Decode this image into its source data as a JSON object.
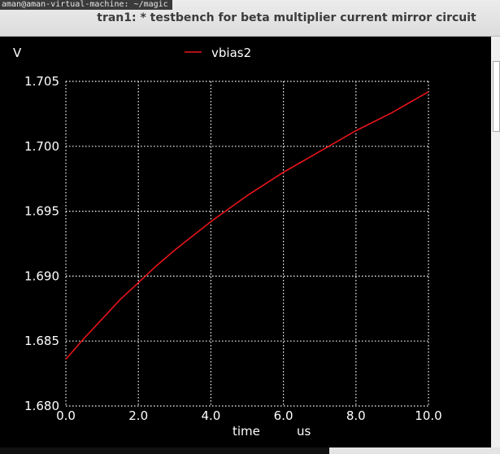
{
  "window": {
    "title": "tran1: * testbench for beta multiplier current mirror circuit",
    "background_terminal_text": "aman@aman-virtual-machine: ~/magic"
  },
  "colors": {
    "plot_background": "#000000",
    "grid": "#ffffff",
    "axis_text": "#ffffff",
    "trace": "#e8141a",
    "titlebar": "#e4e4e4"
  },
  "chart_data": {
    "type": "line",
    "title": "",
    "xlabel": "time",
    "xunit": "us",
    "ylabel": "V",
    "xlim": [
      0.0,
      10.0
    ],
    "ylim": [
      1.68,
      1.705
    ],
    "x_ticks": [
      "0.0",
      "2.0",
      "4.0",
      "6.0",
      "8.0",
      "10.0"
    ],
    "y_ticks": [
      "1.705",
      "1.700",
      "1.695",
      "1.690",
      "1.685",
      "1.680"
    ],
    "grid": true,
    "legend_position": "top-center",
    "series": [
      {
        "name": "vbias2",
        "color": "#e8141a",
        "x": [
          0.0,
          0.5,
          1.0,
          1.5,
          2.0,
          2.5,
          3.0,
          3.5,
          4.0,
          4.5,
          5.0,
          5.5,
          6.0,
          6.5,
          7.0,
          7.5,
          8.0,
          8.5,
          9.0,
          9.5,
          10.0
        ],
        "y": [
          1.6836,
          1.6852,
          1.6867,
          1.6882,
          1.6895,
          1.6908,
          1.692,
          1.6931,
          1.6942,
          1.6952,
          1.6962,
          1.6971,
          1.698,
          1.6988,
          1.6996,
          1.7004,
          1.7012,
          1.7019,
          1.7026,
          1.7034,
          1.7042
        ]
      }
    ]
  }
}
